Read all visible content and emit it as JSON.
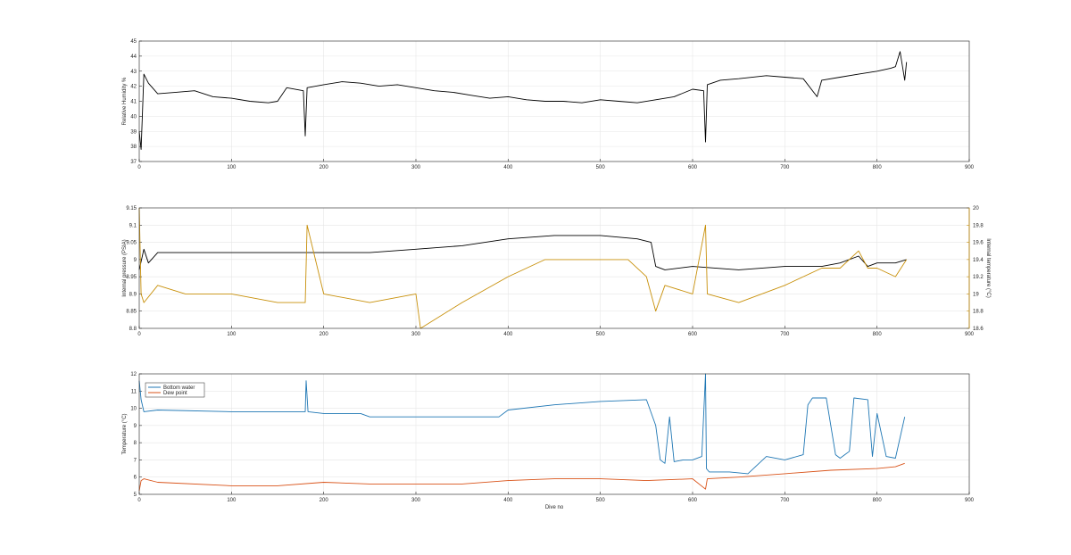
{
  "colors": {
    "background": "#ffffff",
    "axis": "#262626",
    "grid": "#e6e6e6",
    "black_series": "#000000",
    "orange_series": "#c8900a",
    "blue_series": "#1f77b4",
    "red_series": "#d95319"
  },
  "chart_data": [
    {
      "type": "line",
      "xlabel": "",
      "ylabel": "Relative Humidity %",
      "xlim": [
        0,
        900
      ],
      "ylim": [
        37,
        45
      ],
      "xticks": [
        "0",
        "100",
        "200",
        "300",
        "400",
        "500",
        "600",
        "700",
        "800",
        "900"
      ],
      "yticks": [
        "37",
        "38",
        "39",
        "40",
        "41",
        "42",
        "43",
        "44",
        "45"
      ],
      "grid": true,
      "series": [
        {
          "color": "#000000",
          "x": [
            0,
            2,
            5,
            10,
            20,
            40,
            60,
            80,
            100,
            120,
            140,
            150,
            160,
            178,
            180,
            182,
            200,
            220,
            240,
            260,
            280,
            300,
            320,
            340,
            360,
            380,
            400,
            420,
            440,
            460,
            480,
            500,
            520,
            540,
            560,
            580,
            600,
            612,
            614,
            616,
            630,
            650,
            680,
            700,
            720,
            735,
            740,
            760,
            780,
            800,
            815,
            820,
            825,
            830,
            832
          ],
          "y": [
            39,
            37.8,
            42.8,
            42.2,
            41.5,
            41.6,
            41.7,
            41.3,
            41.2,
            41.0,
            40.9,
            41.0,
            41.9,
            41.7,
            38.7,
            41.9,
            42.1,
            42.3,
            42.2,
            42.0,
            42.1,
            41.9,
            41.7,
            41.6,
            41.4,
            41.2,
            41.3,
            41.1,
            41.0,
            41.0,
            40.9,
            41.1,
            41.0,
            40.9,
            41.1,
            41.3,
            41.8,
            41.7,
            38.3,
            42.1,
            42.4,
            42.5,
            42.7,
            42.6,
            42.5,
            41.3,
            42.4,
            42.6,
            42.8,
            43.0,
            43.2,
            43.3,
            44.3,
            42.4,
            43.6
          ]
        }
      ]
    },
    {
      "type": "line",
      "xlabel": "",
      "ylabel": "Internal pressure (PSIA)",
      "y2label": "Internal temperature (°C)",
      "xlim": [
        0,
        900
      ],
      "ylim": [
        8.8,
        9.15
      ],
      "y2lim": [
        18.6,
        20
      ],
      "xticks": [
        "0",
        "100",
        "200",
        "300",
        "400",
        "500",
        "600",
        "700",
        "800",
        "900"
      ],
      "yticks": [
        "8.8",
        "8.85",
        "8.9",
        "8.95",
        "9",
        "9.05",
        "9.1",
        "9.15"
      ],
      "y2ticks": [
        "18.6",
        "18.8",
        "19",
        "19.2",
        "19.4",
        "19.6",
        "19.8",
        "20"
      ],
      "grid": true,
      "series": [
        {
          "axis": "left",
          "color": "#000000",
          "x": [
            0,
            5,
            10,
            20,
            50,
            100,
            150,
            180,
            200,
            250,
            300,
            350,
            400,
            450,
            500,
            540,
            555,
            560,
            570,
            600,
            650,
            700,
            740,
            760,
            780,
            790,
            800,
            820,
            832
          ],
          "y": [
            8.97,
            9.03,
            8.99,
            9.02,
            9.02,
            9.02,
            9.02,
            9.02,
            9.02,
            9.02,
            9.03,
            9.04,
            9.06,
            9.07,
            9.07,
            9.06,
            9.05,
            8.98,
            8.97,
            8.98,
            8.97,
            8.98,
            8.98,
            8.99,
            9.01,
            8.98,
            8.99,
            8.99,
            9.0
          ]
        },
        {
          "axis": "right",
          "color": "#c8900a",
          "x": [
            0,
            2,
            5,
            20,
            50,
            100,
            150,
            180,
            182,
            200,
            250,
            300,
            305,
            350,
            400,
            420,
            440,
            460,
            480,
            500,
            530,
            550,
            560,
            570,
            600,
            614,
            616,
            650,
            700,
            740,
            760,
            780,
            790,
            800,
            820,
            832
          ],
          "y": [
            20.0,
            19.0,
            18.9,
            19.1,
            19.0,
            19.0,
            18.9,
            18.9,
            19.8,
            19.0,
            18.9,
            19.0,
            18.6,
            18.9,
            19.2,
            19.3,
            19.4,
            19.4,
            19.4,
            19.4,
            19.4,
            19.2,
            18.8,
            19.1,
            19.0,
            19.8,
            19.0,
            18.9,
            19.1,
            19.3,
            19.3,
            19.5,
            19.3,
            19.3,
            19.2,
            19.4
          ]
        }
      ]
    },
    {
      "type": "line",
      "xlabel": "Dive no",
      "ylabel": "Temperature (°C)",
      "xlim": [
        0,
        900
      ],
      "ylim": [
        5,
        12
      ],
      "xticks": [
        "0",
        "100",
        "200",
        "300",
        "400",
        "500",
        "600",
        "700",
        "800",
        "900"
      ],
      "yticks": [
        "5",
        "6",
        "7",
        "8",
        "9",
        "10",
        "11",
        "12"
      ],
      "grid": true,
      "legend": {
        "position": "top-left",
        "entries": [
          "Bottom water",
          "Dew point"
        ]
      },
      "series": [
        {
          "name": "Bottom water",
          "color": "#1f77b4",
          "x": [
            0,
            2,
            5,
            20,
            100,
            150,
            180,
            181,
            183,
            200,
            240,
            250,
            300,
            350,
            390,
            400,
            450,
            500,
            550,
            560,
            565,
            570,
            575,
            580,
            590,
            600,
            610,
            614,
            615,
            618,
            640,
            660,
            680,
            700,
            720,
            725,
            730,
            745,
            755,
            760,
            770,
            775,
            790,
            795,
            800,
            810,
            820,
            825,
            830
          ],
          "y": [
            11.6,
            10.5,
            9.8,
            9.9,
            9.8,
            9.8,
            9.8,
            11.6,
            9.8,
            9.7,
            9.7,
            9.5,
            9.5,
            9.5,
            9.5,
            9.9,
            10.2,
            10.4,
            10.5,
            9.0,
            7.0,
            6.8,
            9.5,
            6.9,
            7.0,
            7.0,
            7.2,
            12.0,
            6.5,
            6.3,
            6.3,
            6.2,
            7.2,
            7.0,
            7.3,
            10.2,
            10.6,
            10.6,
            7.3,
            7.1,
            7.5,
            10.6,
            10.5,
            7.2,
            9.7,
            7.2,
            7.1,
            8.3,
            9.5
          ]
        },
        {
          "name": "Dew point",
          "color": "#d95319",
          "x": [
            0,
            2,
            5,
            20,
            100,
            150,
            200,
            250,
            300,
            350,
            400,
            450,
            500,
            550,
            600,
            614,
            616,
            650,
            700,
            750,
            800,
            820,
            830
          ],
          "y": [
            5.2,
            5.8,
            5.9,
            5.7,
            5.5,
            5.5,
            5.7,
            5.6,
            5.6,
            5.6,
            5.8,
            5.9,
            5.9,
            5.8,
            5.9,
            5.3,
            5.9,
            6.0,
            6.2,
            6.4,
            6.5,
            6.6,
            6.8
          ]
        }
      ]
    }
  ]
}
